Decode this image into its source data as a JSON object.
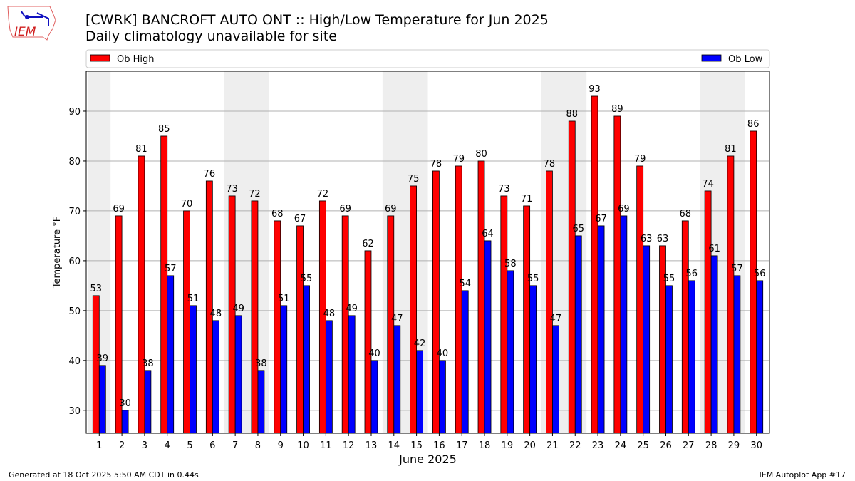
{
  "title_line1": "[CWRK] BANCROFT AUTO  ONT :: High/Low Temperature for Jun 2025",
  "title_line2": "Daily climatology unavailable for site",
  "logo_text": "IEM",
  "footer_left": "Generated at 18 Oct 2025 5:50 AM CDT in 0.44s",
  "footer_right": "IEM Autoplot App #17",
  "chart_data": {
    "type": "bar",
    "xlabel": "June 2025",
    "ylabel": "Temperature °F",
    "ylim": [
      25.4,
      98
    ],
    "yticks": [
      30,
      40,
      50,
      60,
      70,
      80,
      90
    ],
    "grid": true,
    "legend_placement": "top",
    "categories": [
      "1",
      "2",
      "3",
      "4",
      "5",
      "6",
      "7",
      "8",
      "9",
      "10",
      "11",
      "12",
      "13",
      "14",
      "15",
      "16",
      "17",
      "18",
      "19",
      "20",
      "21",
      "22",
      "23",
      "24",
      "25",
      "26",
      "27",
      "28",
      "29",
      "30"
    ],
    "shaded_days": [
      1,
      7,
      8,
      14,
      15,
      21,
      22,
      28,
      29
    ],
    "series": [
      {
        "name": "Ob High",
        "color": "#ff0000",
        "values": [
          53,
          69,
          81,
          85,
          70,
          76,
          73,
          72,
          68,
          67,
          72,
          69,
          62,
          69,
          75,
          78,
          79,
          80,
          73,
          71,
          78,
          88,
          93,
          89,
          79,
          63,
          68,
          74,
          81,
          86
        ]
      },
      {
        "name": "Ob Low",
        "color": "#0000ff",
        "values": [
          39,
          30,
          38,
          57,
          51,
          48,
          49,
          38,
          51,
          55,
          48,
          49,
          40,
          47,
          42,
          40,
          54,
          64,
          58,
          55,
          47,
          65,
          67,
          69,
          63,
          55,
          56,
          61,
          57,
          56
        ]
      }
    ]
  }
}
